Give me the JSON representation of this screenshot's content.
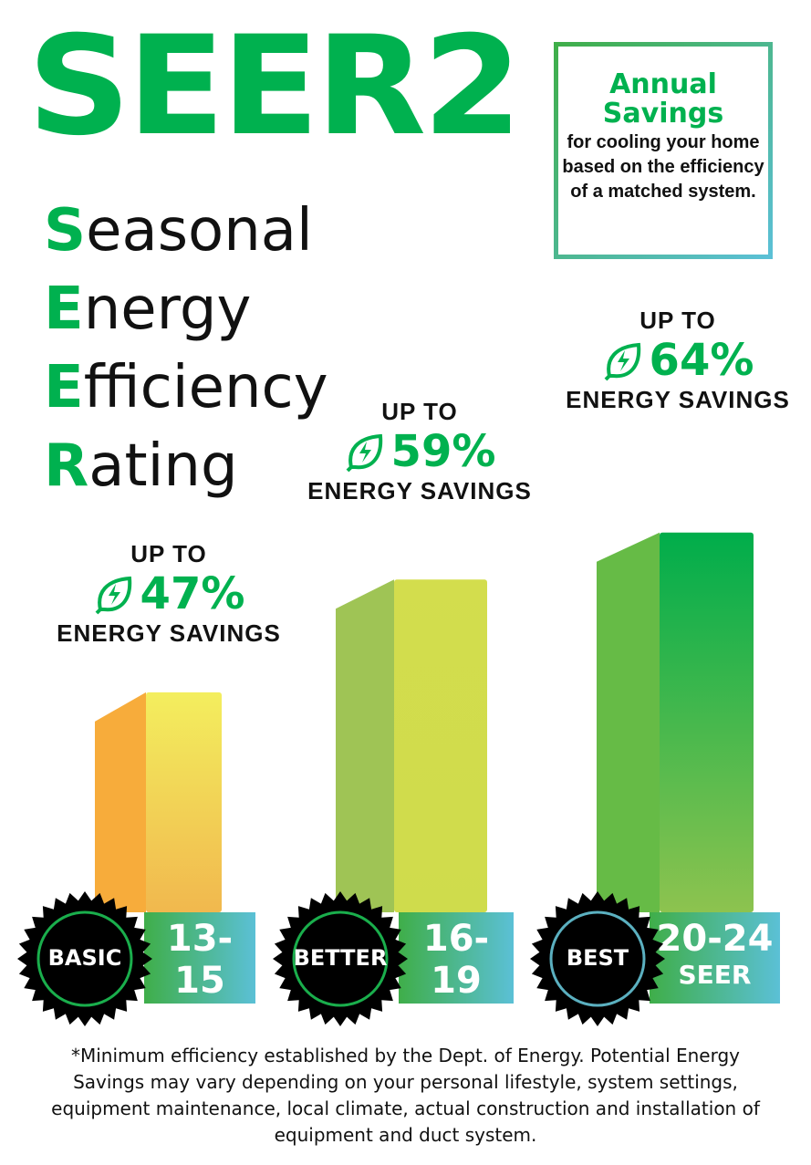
{
  "title": "SEER2",
  "acronym": [
    {
      "first": "S",
      "rest": "easonal"
    },
    {
      "first": "E",
      "rest": "nergy"
    },
    {
      "first": "E",
      "rest": "fficiency"
    },
    {
      "first": "R",
      "rest": "ating"
    }
  ],
  "savings_box": {
    "heading_line1": "Annual",
    "heading_line2": "Savings",
    "body": "for cooling your home based on the efficiency of a matched system."
  },
  "footnote": "*Minimum efficiency established by the Dept. of Energy. Potential Energy Savings may vary depending on your personal lifestyle, system settings, equipment maintenance, local climate, actual construction and installation of equipment and duct system.",
  "colors": {
    "brand_green": "#00b14f",
    "teal": "#5bc0d6",
    "badge": "#000000"
  },
  "icon": "leaf-lightning-icon",
  "chart_data": {
    "type": "bar",
    "categories": [
      "BASIC",
      "BETTER",
      "BEST"
    ],
    "values": [
      47,
      59,
      64
    ],
    "value_prefix": "UP TO",
    "value_suffix": "ENERGY SAVINGS",
    "ranges": [
      "13-15",
      "16-19",
      "20-24"
    ],
    "range_unit": "SEER",
    "value_labels": [
      "47%",
      "59%",
      "64%"
    ],
    "colors": [
      {
        "side": "#f7ac3b",
        "front_top": "#f3ee5e",
        "front_bottom": "#f1b84e"
      },
      {
        "side": "#9fc455",
        "front_top": "#d3dd4d",
        "front_bottom": "#cfdc4c"
      },
      {
        "side": "#66bb46",
        "front_top": "#00ad4b",
        "front_bottom": "#8dc34f"
      }
    ],
    "title": "",
    "xlabel": "",
    "ylabel": ""
  }
}
